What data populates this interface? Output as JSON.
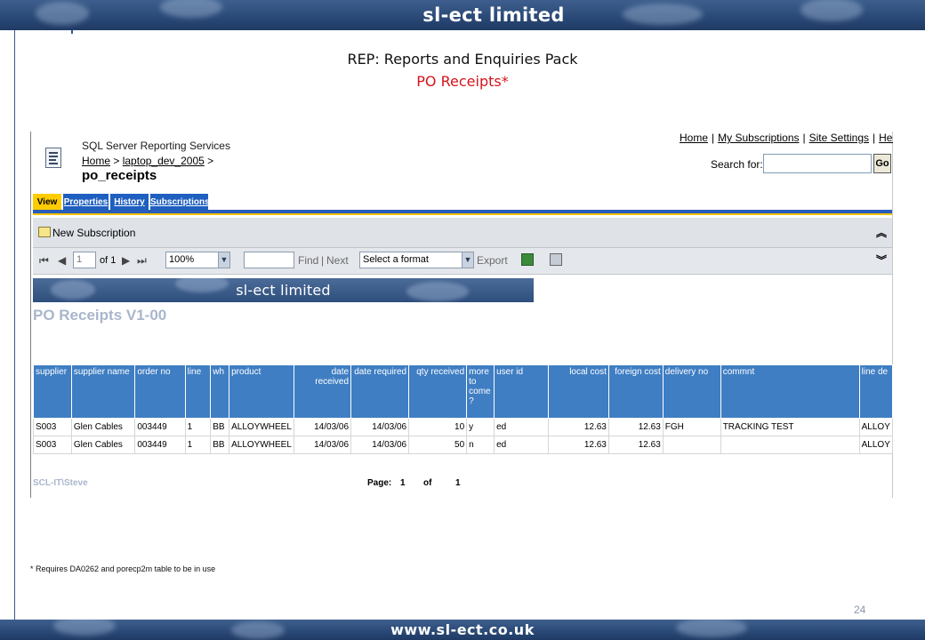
{
  "slide": {
    "banner_top": "sl-ect limited",
    "banner_bottom": "www.sl-ect.co.uk",
    "title": "REP: Reports and Enquiries Pack",
    "subtitle": "PO Receipts*",
    "footnote": "* Requires DA0262 and porecp2m table to be in use",
    "page_number": "24"
  },
  "ssrs": {
    "product_name": "SQL Server Reporting Services",
    "breadcrumb": {
      "home": "Home",
      "sep1": ">",
      "folder": "laptop_dev_2005",
      "sep2": ">"
    },
    "report_name": "po_receipts",
    "top_links": {
      "home": "Home",
      "subscriptions": "My Subscriptions",
      "site_settings": "Site Settings",
      "help": "Help",
      "sep": "|"
    },
    "search": {
      "label": "Search for:",
      "value": "",
      "go": "Go"
    },
    "tabs": [
      {
        "label": "View",
        "active": true
      },
      {
        "label": "Properties",
        "active": false
      },
      {
        "label": "History",
        "active": false
      },
      {
        "label": "Subscriptions",
        "active": false
      }
    ],
    "new_subscription": "New Subscription",
    "toolbar": {
      "first_icon": "⏮",
      "prev_icon": "◀",
      "page_value": "1",
      "of_label": "of 1",
      "next_icon": "▶",
      "last_icon": "⏭",
      "zoom": "100%",
      "find_value": "",
      "find": "Find",
      "sep": "|",
      "next": "Next",
      "format": "Select a format",
      "export": "Export"
    },
    "report": {
      "banner": "sl-ect limited",
      "title": "PO Receipts V1-00",
      "columns": [
        "supplier",
        "supplier name",
        "order no",
        "line",
        "wh",
        "product",
        "date received",
        "date required",
        "qty received",
        "more to come ?",
        "user id",
        "local cost",
        "foreign cost",
        "delivery no",
        "commnt",
        "line de"
      ],
      "rows": [
        [
          "S003",
          "Glen Cables",
          "003449",
          "1",
          "BB",
          "ALLOYWHEEL",
          "14/03/06",
          "14/03/06",
          "10",
          "y",
          "ed",
          "12.63",
          "12.63",
          "FGH",
          "TRACKING TEST",
          "ALLOY"
        ],
        [
          "S003",
          "Glen Cables",
          "003449",
          "1",
          "BB",
          "ALLOYWHEEL",
          "14/03/06",
          "14/03/06",
          "50",
          "n",
          "ed",
          "12.63",
          "12.63",
          "",
          "",
          "ALLOY"
        ]
      ],
      "footer_user": "SCL-IT\\Steve",
      "footer_page_label": "Page:",
      "footer_page": "1",
      "footer_of": "of",
      "footer_total": "1"
    }
  },
  "colors": {
    "accent_blue": "#3f7ec3",
    "tab_active": "#ffcc00",
    "tab_inactive": "#1f5fbf",
    "subtitle_red": "#d4141c"
  }
}
